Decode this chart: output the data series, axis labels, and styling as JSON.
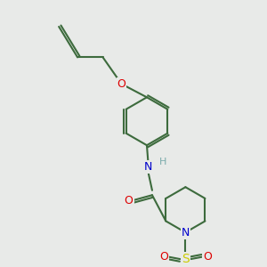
{
  "background_color": "#e8eae8",
  "bond_color": "#3d6b3d",
  "atom_colors": {
    "N": "#0000cc",
    "O": "#dd0000",
    "S": "#cccc00",
    "H": "#7aabab",
    "C": "#3d6b3d"
  },
  "figsize": [
    3.0,
    3.0
  ],
  "dpi": 100
}
